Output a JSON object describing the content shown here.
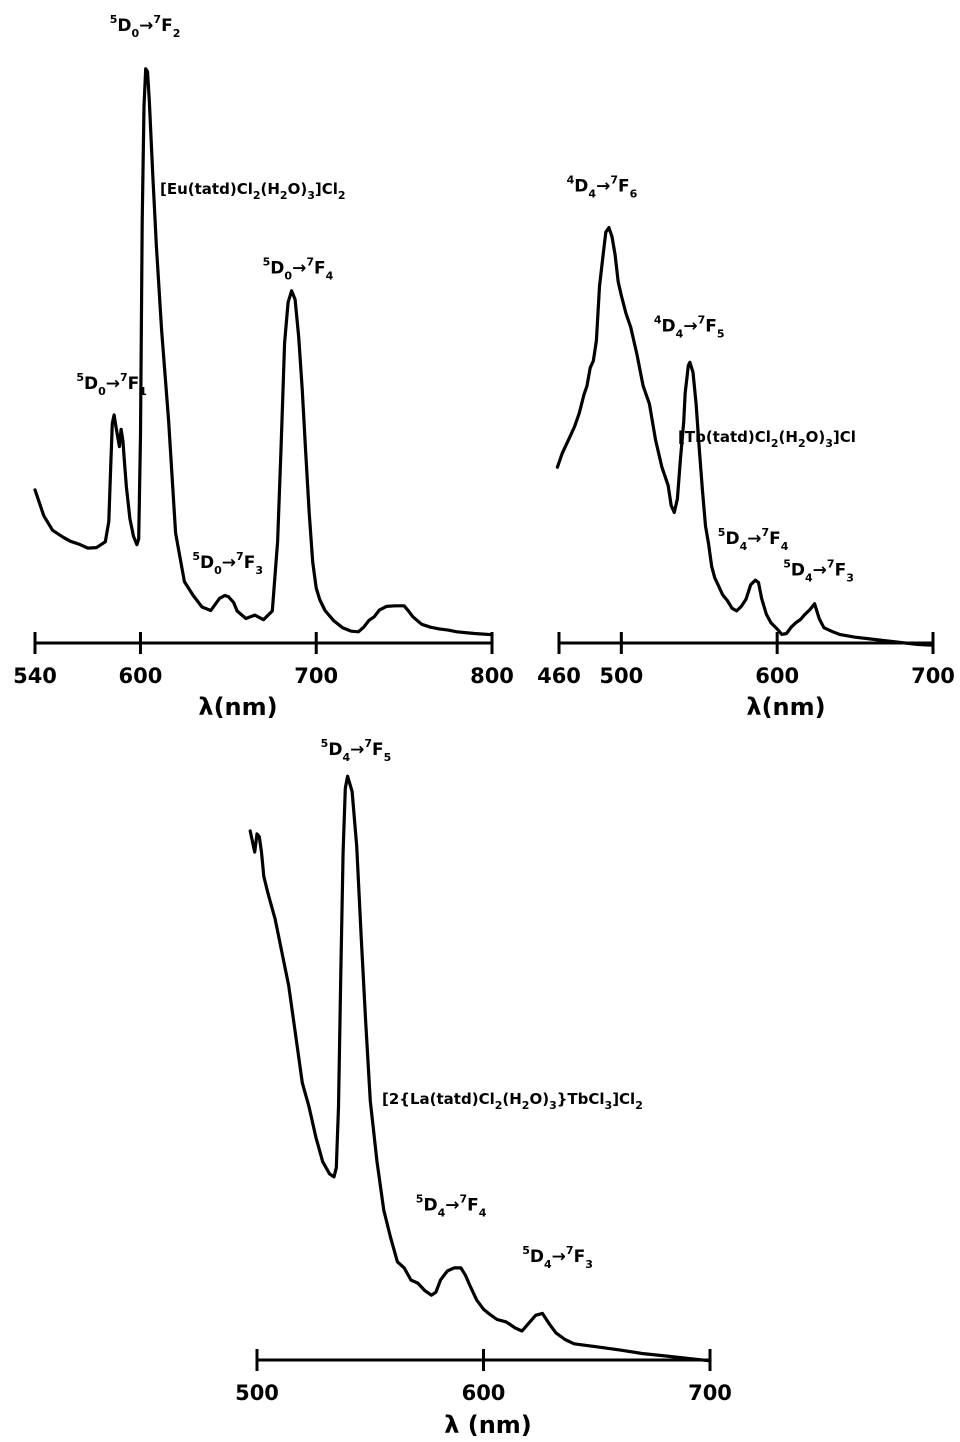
{
  "chart_data": [
    {
      "id": "eu",
      "type": "line",
      "compound": "[Eu(tatd)Cl2(H2O)3]Cl2",
      "compound_parts": [
        {
          "t": "[Eu(tatd)Cl"
        },
        {
          "t": "2",
          "sub": true
        },
        {
          "t": "(H"
        },
        {
          "t": "2",
          "sub": true
        },
        {
          "t": "O)"
        },
        {
          "t": "3",
          "sub": true
        },
        {
          "t": "]Cl"
        },
        {
          "t": "2",
          "sub": true
        }
      ],
      "xlabel": "λ(nm)",
      "xlim": [
        540,
        800
      ],
      "ylim": [
        0,
        100
      ],
      "xticks": [
        540,
        600,
        700,
        800
      ],
      "xtick_labels": [
        "540",
        "600",
        "700",
        "800"
      ],
      "x": [
        540,
        545,
        550,
        556,
        560,
        565,
        570,
        575,
        580,
        582,
        583,
        584,
        585,
        586,
        588,
        589,
        590,
        591,
        592,
        594,
        596,
        598,
        599,
        600,
        601,
        602,
        603,
        604,
        605,
        607,
        609,
        612,
        616,
        620,
        625,
        630,
        635,
        640,
        645,
        648,
        650,
        653,
        655,
        660,
        665,
        670,
        675,
        678,
        680,
        682,
        684,
        686,
        688,
        690,
        692,
        694,
        696,
        698,
        700,
        702,
        705,
        710,
        715,
        720,
        724,
        727,
        730,
        733,
        736,
        740,
        745,
        750,
        752,
        755,
        760,
        765,
        770,
        775,
        780,
        790,
        800
      ],
      "y": [
        25.5,
        21,
        18.5,
        17.3,
        16.6,
        16.1,
        15.4,
        15.5,
        16.5,
        20,
        29,
        37,
        38.5,
        36.5,
        33,
        36,
        34,
        30,
        26,
        20.5,
        17.5,
        16,
        17,
        35,
        72,
        92,
        98.5,
        98,
        93,
        80,
        68,
        53.2,
        37.5,
        18,
        9.6,
        7.2,
        5.2,
        4.6,
        6.7,
        7.2,
        7,
        6,
        4.5,
        3.2,
        3.8,
        3,
        4.5,
        16.5,
        33,
        51,
        58,
        60,
        58.5,
        52,
        43,
        32,
        21.5,
        13,
        8.5,
        6.5,
        4.6,
        2.8,
        1.6,
        1,
        0.9,
        1.7,
        2.9,
        3.5,
        4.7,
        5.3,
        5.4,
        5.4,
        4.7,
        3.5,
        2.2,
        1.7,
        1.4,
        1.2,
        0.9,
        0.6,
        0.4
      ],
      "annotations": [
        {
          "pre": "5",
          "a": "D",
          "asub": "0",
          "b": "F",
          "bsup": "7",
          "bsub": "1",
          "x": 584,
          "y": 43
        },
        {
          "pre": "5",
          "a": "D",
          "asub": "0",
          "b": "F",
          "bsup": "7",
          "bsub": "2",
          "x": 603,
          "y": 105
        },
        {
          "pre": "5",
          "a": "D",
          "asub": "0",
          "b": "F",
          "bsup": "7",
          "bsub": "3",
          "x": 650,
          "y": 12
        },
        {
          "pre": "5",
          "a": "D",
          "asub": "0",
          "b": "F",
          "bsup": "7",
          "bsub": "4",
          "x": 690,
          "y": 63
        }
      ]
    },
    {
      "id": "tb",
      "type": "line",
      "compound": "[Tb(tatd)Cl2(H2O)3]Cl",
      "compound_parts": [
        {
          "t": "[Tb(tatd)Cl"
        },
        {
          "t": "2",
          "sub": true
        },
        {
          "t": "(H"
        },
        {
          "t": "2",
          "sub": true
        },
        {
          "t": "O)"
        },
        {
          "t": "3",
          "sub": true
        },
        {
          "t": "]Cl"
        }
      ],
      "xlabel": "λ(nm)",
      "xlim": [
        460,
        700
      ],
      "ylim": [
        0,
        100
      ],
      "xticks": [
        460,
        500,
        600,
        700
      ],
      "xtick_labels": [
        "460",
        "500",
        "600",
        "700"
      ],
      "x": [
        459,
        462,
        466,
        470,
        473,
        476,
        478,
        480,
        482,
        484,
        486,
        488,
        490,
        492,
        494,
        496,
        498,
        500,
        503,
        506,
        510,
        514,
        518,
        522,
        526,
        530,
        532,
        534,
        536,
        538,
        540,
        541,
        542,
        543,
        544,
        546,
        548,
        550,
        552,
        554,
        556,
        558,
        560,
        562,
        565,
        568,
        571,
        574,
        577,
        580,
        583,
        586,
        588,
        590,
        593,
        596,
        600,
        603,
        606,
        609,
        612,
        615,
        618,
        621,
        624,
        627,
        630,
        635,
        640,
        650,
        660,
        670,
        680,
        690,
        700
      ],
      "y": [
        40,
        43,
        46,
        49,
        52,
        56,
        58,
        62,
        63.5,
        68,
        80,
        86,
        92,
        93,
        91,
        87,
        81,
        78,
        74,
        71,
        65,
        58,
        54,
        46,
        40,
        36,
        31.5,
        30,
        33,
        42,
        50,
        56.5,
        59.5,
        62.5,
        63.2,
        61,
        54,
        44,
        35,
        27,
        23,
        18,
        15.5,
        14,
        11.8,
        10.5,
        8.8,
        8.2,
        9.2,
        10.8,
        14,
        15,
        14.5,
        11,
        7.5,
        5.6,
        4.2,
        3,
        3.2,
        4.6,
        5.6,
        6.3,
        7.5,
        8.5,
        9.8,
        6.5,
        4.5,
        3.7,
        3,
        2.4,
        2,
        1.6,
        1.2,
        0.8,
        0.6
      ],
      "annotations": [
        {
          "pre": "4",
          "a": "D",
          "asub": "4",
          "b": "F",
          "bsup": "7",
          "bsub": "6",
          "x": 488,
          "y": 101
        },
        {
          "pre": "4",
          "a": "D",
          "asub": "4",
          "b": "F",
          "bsup": "7",
          "bsub": "5",
          "x": 544,
          "y": 70
        },
        {
          "pre": "5",
          "a": "D",
          "asub": "4",
          "b": "F",
          "bsup": "7",
          "bsub": "4",
          "x": 585,
          "y": 23
        },
        {
          "pre": "5",
          "a": "D",
          "asub": "4",
          "b": "F",
          "bsup": "7",
          "bsub": "3",
          "x": 627,
          "y": 16
        }
      ]
    },
    {
      "id": "la-tb",
      "type": "line",
      "compound": "[2{La(tatd)Cl2(H2O)3}TbCl3]Cl2",
      "compound_parts": [
        {
          "t": "[2{La(tatd)Cl"
        },
        {
          "t": "2",
          "sub": true
        },
        {
          "t": "(H"
        },
        {
          "t": "2",
          "sub": true
        },
        {
          "t": "O)"
        },
        {
          "t": "3",
          "sub": true
        },
        {
          "t": "}TbCl"
        },
        {
          "t": "3",
          "sub": true
        },
        {
          "t": "]Cl"
        },
        {
          "t": "2",
          "sub": true
        }
      ],
      "xlabel": "λ (nm)",
      "xlim": [
        500,
        700
      ],
      "ylim": [
        0,
        100
      ],
      "xticks": [
        500,
        600,
        700
      ],
      "xtick_labels": [
        "500",
        "600",
        "700"
      ],
      "x": [
        497,
        499,
        500,
        501,
        502,
        503,
        505,
        508,
        511,
        514,
        517,
        520,
        523,
        526,
        529,
        532,
        534,
        535,
        536,
        537,
        538,
        539,
        540,
        542,
        544,
        546,
        548,
        550,
        553,
        556,
        559,
        562,
        565,
        568,
        571,
        574,
        577,
        579,
        581,
        584,
        587,
        590,
        592,
        594,
        597,
        600,
        603,
        606,
        610,
        614,
        617,
        620,
        623,
        626,
        629,
        632,
        636,
        640,
        650,
        660,
        670,
        680,
        690,
        700
      ],
      "y": [
        87.5,
        84,
        87,
        86.5,
        84,
        80,
        77,
        73,
        67.5,
        62,
        54,
        46,
        42,
        37,
        33,
        31,
        30.5,
        32,
        42,
        64,
        84,
        94.5,
        96.5,
        94,
        85,
        70,
        56,
        43,
        33,
        25,
        20.5,
        16.5,
        15.5,
        13.5,
        13,
        11.8,
        11,
        11.5,
        13.5,
        15,
        15.5,
        15.5,
        14.3,
        12.6,
        10.2,
        8.7,
        7.8,
        7,
        6.6,
        5.6,
        5.1,
        6.4,
        7.7,
        8,
        6.3,
        4.8,
        3.7,
        3,
        2.5,
        2,
        1.4,
        1,
        0.6,
        0.2
      ],
      "annotations": [
        {
          "pre": "5",
          "a": "D",
          "asub": "4",
          "b": "F",
          "bsup": "7",
          "bsub": "5",
          "x": 544,
          "y": 100
        },
        {
          "pre": "5",
          "a": "D",
          "asub": "4",
          "b": "F",
          "bsup": "7",
          "bsub": "4",
          "x": 586,
          "y": 25
        },
        {
          "pre": "5",
          "a": "D",
          "asub": "4",
          "b": "F",
          "bsup": "7",
          "bsub": "3",
          "x": 633,
          "y": 16.5
        }
      ]
    }
  ]
}
